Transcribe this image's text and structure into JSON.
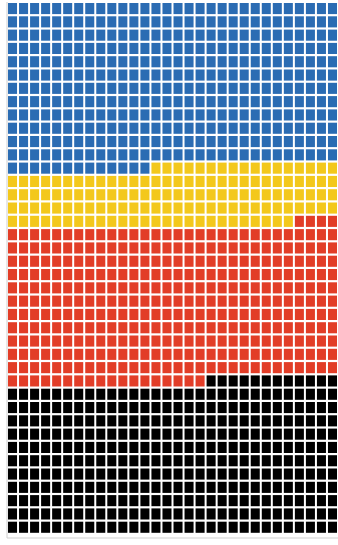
{
  "chart_data": {
    "type": "waffle",
    "columns": 30,
    "rows": 40,
    "series": [
      {
        "color": "#2b6cb3",
        "values": [
          373
        ]
      },
      {
        "color": "#f3c81c",
        "values": [
          133
        ]
      },
      {
        "color": "#e23d27",
        "values": [
          352
        ]
      },
      {
        "color": "#000000",
        "values": [
          342
        ]
      }
    ]
  }
}
